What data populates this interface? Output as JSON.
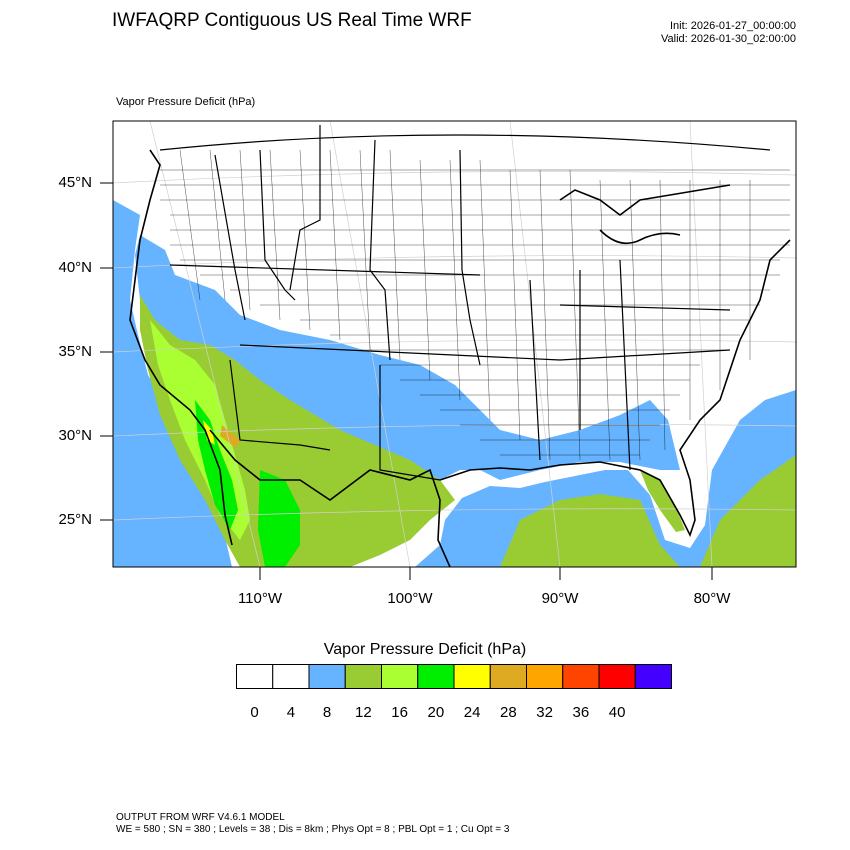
{
  "header": {
    "title": "IWFAQRP Contiguous US Real Time WRF",
    "init": "Init: 2026-01-27_00:00:00",
    "valid": "Valid: 2026-01-30_02:00:00",
    "subtitle": "Vapor Pressure Deficit   (hPa)"
  },
  "map": {
    "lat_labels": [
      "45°N",
      "40°N",
      "35°N",
      "30°N",
      "25°N"
    ],
    "lon_labels": [
      "110°W",
      "100°W",
      "90°W",
      "80°W"
    ],
    "colors": {
      "ocean_vpd": "#66b3ff",
      "class_4_8": "#66b3ff",
      "class_8_12": "#99cc33",
      "class_12_16": "#aaff33",
      "class_16_20": "#00ee00",
      "class_20_24": "#ffff00",
      "class_24_28": "#ddaa22"
    }
  },
  "colorbar": {
    "title": "Vapor Pressure Deficit  (hPa)",
    "labels": [
      "0",
      "4",
      "8",
      "12",
      "16",
      "20",
      "24",
      "28",
      "32",
      "36",
      "40"
    ],
    "colors": [
      "#ffffff",
      "#ffffff",
      "#66b3ff",
      "#99cc33",
      "#aaff33",
      "#00ee00",
      "#ffff00",
      "#ddaa22",
      "#ffa500",
      "#ff4400",
      "#ff0000",
      "#4400ff"
    ]
  },
  "footer": {
    "line1": "OUTPUT FROM WRF V4.6.1 MODEL",
    "line2": "WE = 580 ; SN = 380 ; Levels = 38 ; Dis = 8km ; Phys Opt = 8 ; PBL Opt = 1 ; Cu Opt = 3"
  }
}
